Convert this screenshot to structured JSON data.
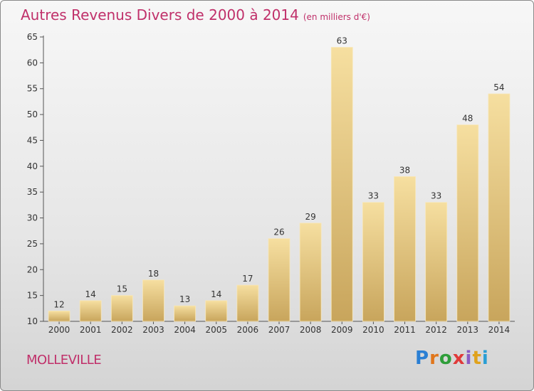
{
  "title": "Autres Revenus Divers de 2000 à 2014",
  "unit": "(en milliers d'€)",
  "commune": "MOLLEVILLE",
  "logo": {
    "letters": [
      "P",
      "r",
      "o",
      "x",
      "i",
      "t",
      "i"
    ],
    "colors": [
      "#2a7fd4",
      "#e0761c",
      "#2f9e3a",
      "#e03a3a",
      "#8b5cc4",
      "#e0a21c",
      "#2a9ed4"
    ]
  },
  "colors": {
    "bar": "#ecc97a",
    "bar_light": "#f6dfa0",
    "bar_dark": "#c8a55c",
    "title": "#c0306a",
    "axis": "#333333"
  },
  "chart_data": {
    "type": "bar",
    "categories": [
      "2000",
      "2001",
      "2002",
      "2003",
      "2004",
      "2005",
      "2006",
      "2007",
      "2008",
      "2009",
      "2010",
      "2011",
      "2012",
      "2013",
      "2014"
    ],
    "values": [
      12,
      14,
      15,
      18,
      13,
      14,
      17,
      26,
      29,
      63,
      33,
      38,
      33,
      48,
      54
    ],
    "ylim": [
      10,
      65
    ],
    "yticks": [
      10,
      15,
      20,
      25,
      30,
      35,
      40,
      45,
      50,
      55,
      60,
      65
    ],
    "grid": false
  }
}
